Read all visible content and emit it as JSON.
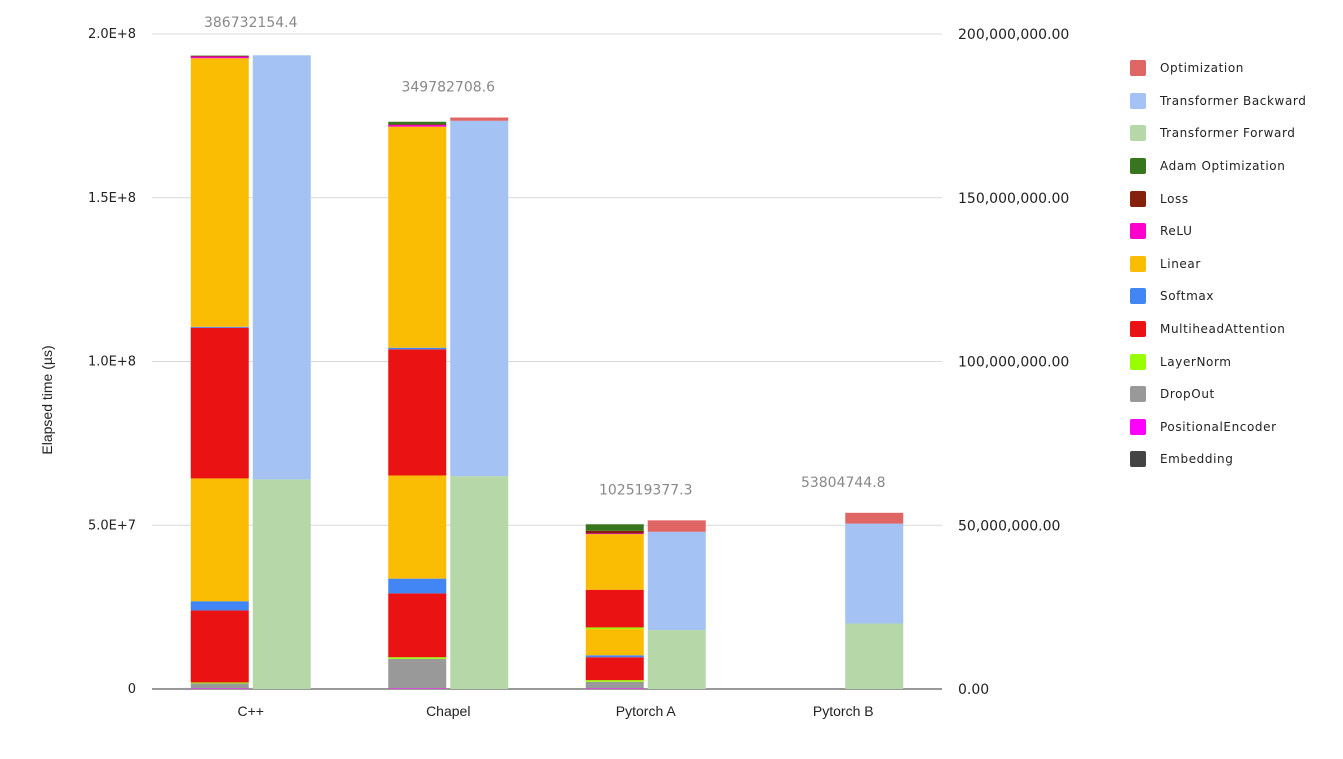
{
  "chart_data": {
    "type": "bar",
    "stacked": true,
    "title": "",
    "xlabel": "",
    "ylabel": "Elapsed time (µs)",
    "ylim": [
      0,
      200000000
    ],
    "y2lim": [
      0,
      200000000
    ],
    "grid": true,
    "legend_position": "right",
    "categories": [
      "C++",
      "Chapel",
      "Pytorch A",
      "Pytorch B"
    ],
    "left_axis_ticks": [
      "0",
      "5.0E+7",
      "1.0E+8",
      "1.5E+8",
      "2.0E+8"
    ],
    "right_axis_ticks": [
      "0.00",
      "50,000,000.00",
      "100,000,000.00",
      "150,000,000.00",
      "200,000,000.00"
    ],
    "total_labels": [
      "386732154.4",
      "349782708.6",
      "102519377.3",
      "53804744.8"
    ],
    "left_stack_series": [
      {
        "name": "Embedding",
        "color": "#434343",
        "values": [
          100000,
          100000,
          100000,
          0
        ]
      },
      {
        "name": "PositionalEncoder",
        "color": "#ff00ff",
        "values": [
          100000,
          100000,
          100000,
          0
        ]
      },
      {
        "name": "DropOut",
        "color": "#999999",
        "values": [
          1500000,
          9000000,
          2000000,
          0
        ]
      },
      {
        "name": "LayerNorm",
        "color": "#99ff00",
        "values": [
          300000,
          500000,
          500000,
          0
        ]
      },
      {
        "name": "MultiheadAttention",
        "color": "#ea1212",
        "values": [
          22000000,
          19500000,
          7000000,
          0
        ]
      },
      {
        "name": "Softmax",
        "color": "#4285f4",
        "values": [
          2800000,
          4500000,
          600000,
          0
        ]
      },
      {
        "name": "Linear",
        "color": "#fbbc04",
        "values": [
          37500000,
          31500000,
          8000000,
          0
        ]
      },
      {
        "name": "LayerNorm",
        "color": "#99ff00",
        "values": [
          0,
          0,
          500000,
          0
        ]
      },
      {
        "name": "MultiheadAttention",
        "color": "#ea1212",
        "values": [
          46000000,
          38500000,
          11500000,
          0
        ]
      },
      {
        "name": "Softmax",
        "color": "#4285f4",
        "values": [
          300000,
          500000,
          0,
          0
        ]
      },
      {
        "name": "Linear",
        "color": "#fbbc04",
        "values": [
          82000000,
          67500000,
          17000000,
          0
        ]
      },
      {
        "name": "ReLU",
        "color": "#ff00cc",
        "values": [
          600000,
          600000,
          200000,
          0
        ]
      },
      {
        "name": "Loss",
        "color": "#85200c",
        "values": [
          100000,
          100000,
          800000,
          0
        ]
      },
      {
        "name": "Adam Optimization",
        "color": "#38761d",
        "values": [
          100000,
          800000,
          2000000,
          0
        ]
      }
    ],
    "right_stack_series": [
      {
        "name": "Transformer Forward",
        "color": "#b6d7a8",
        "values": [
          64000000,
          65000000,
          18000000,
          20000000
        ]
      },
      {
        "name": "Transformer Backward",
        "color": "#a4c2f4",
        "values": [
          129500000,
          108500000,
          30000000,
          30500000
        ]
      },
      {
        "name": "Optimization",
        "color": "#e06666",
        "values": [
          0,
          1000000,
          3500000,
          3300000
        ]
      }
    ],
    "legend": [
      {
        "name": "Optimization",
        "color": "#e06666"
      },
      {
        "name": "Transformer Backward",
        "color": "#a4c2f4"
      },
      {
        "name": "Transformer Forward",
        "color": "#b6d7a8"
      },
      {
        "name": "Adam Optimization",
        "color": "#38761d"
      },
      {
        "name": "Loss",
        "color": "#85200c"
      },
      {
        "name": "ReLU",
        "color": "#ff00cc"
      },
      {
        "name": "Linear",
        "color": "#fbbc04"
      },
      {
        "name": "Softmax",
        "color": "#4285f4"
      },
      {
        "name": "MultiheadAttention",
        "color": "#ea1212"
      },
      {
        "name": "LayerNorm",
        "color": "#99ff00"
      },
      {
        "name": "DropOut",
        "color": "#999999"
      },
      {
        "name": "PositionalEncoder",
        "color": "#ff00ff"
      },
      {
        "name": "Embedding",
        "color": "#434343"
      }
    ]
  }
}
